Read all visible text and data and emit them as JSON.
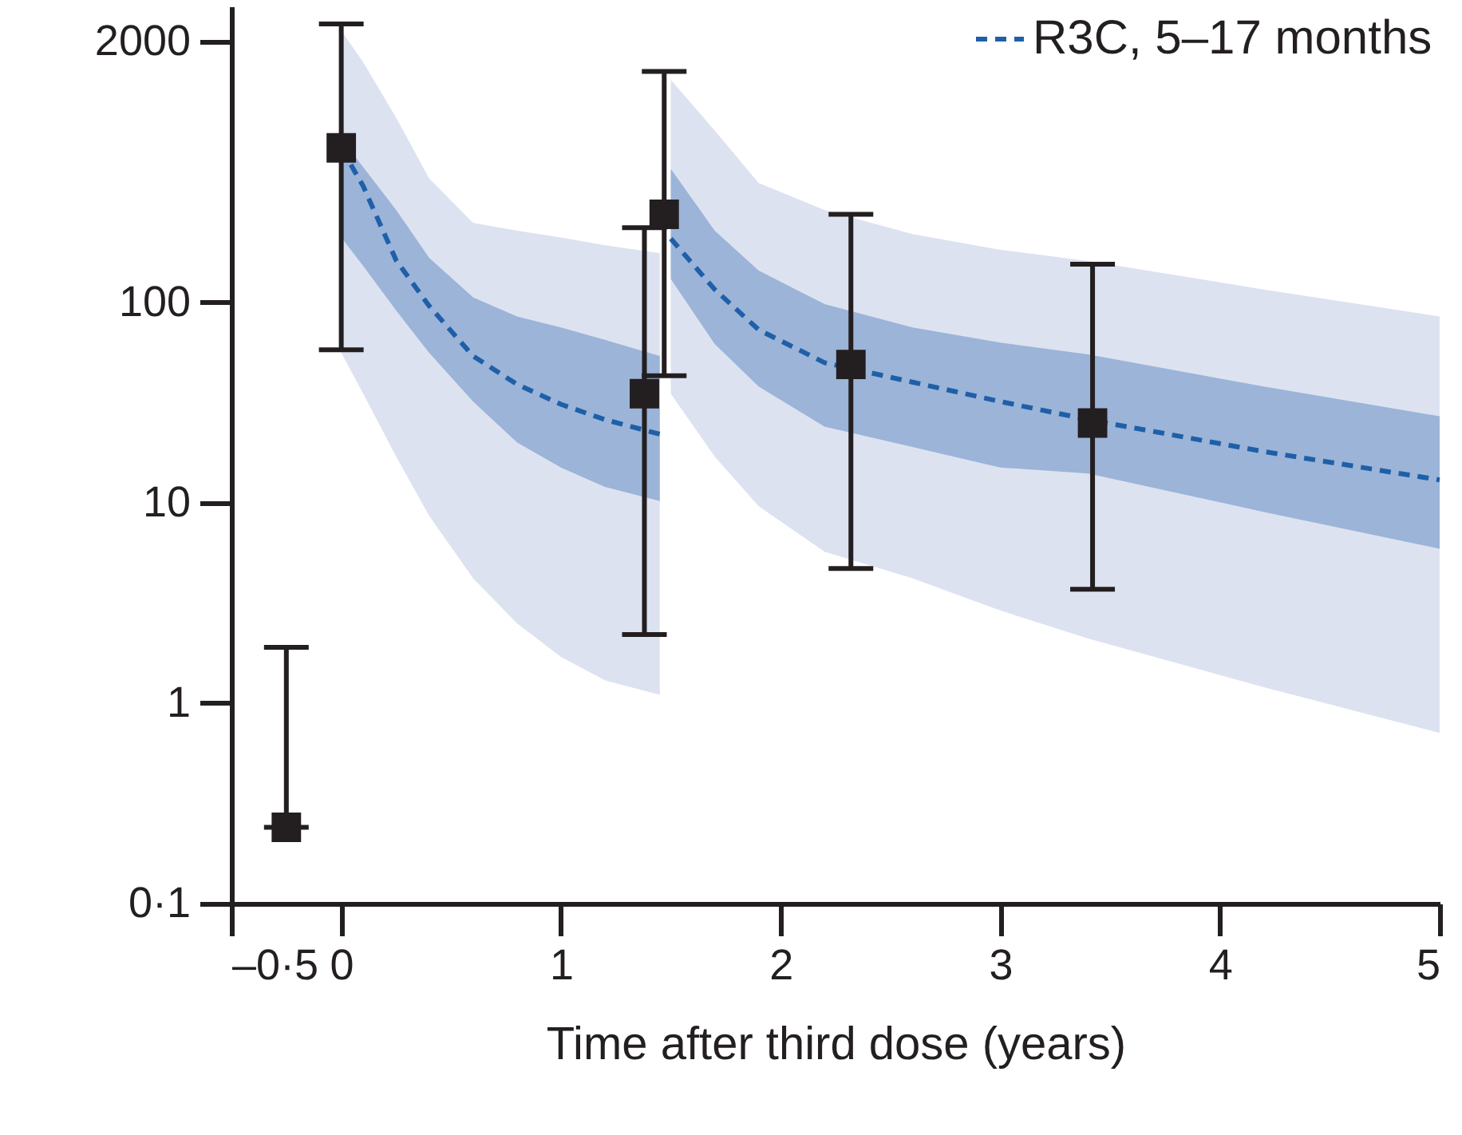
{
  "chart_data": {
    "type": "line",
    "xlabel": "Time after third dose (years)",
    "xlim": [
      -0.5,
      5
    ],
    "xticks": [
      {
        "value": -0.5,
        "label": "–0·5"
      },
      0,
      1,
      2,
      3,
      4,
      5
    ],
    "ylim": [
      0.1,
      3000
    ],
    "yticks": [
      {
        "value": 0.1,
        "label": "0·1"
      },
      1,
      10,
      100,
      2000
    ],
    "log": "y",
    "grid": false,
    "legend": "top right",
    "series": [
      {
        "color": "#dde2f1",
        "x": [
          0,
          0.1,
          0.25,
          0.4,
          0.6,
          0.8,
          1.0,
          1.2,
          1.45,
          1.48,
          1.5,
          1.7,
          1.9,
          2.2,
          2.6,
          3.0,
          3.4,
          4.2,
          5
        ],
        "values": [
          null,
          null,
          null,
          null,
          null,
          null,
          null,
          null,
          null,
          null,
          null,
          null,
          null,
          null,
          null,
          null,
          null,
          null,
          null
        ],
        "lower": [
          56,
          35,
          17,
          8.6,
          4.2,
          2.5,
          1.7,
          1.3,
          1.1,
          null,
          35,
          17,
          9.6,
          5.7,
          4.2,
          2.9,
          2.1,
          1.2,
          0.71
        ],
        "upper": [
          2275,
          1578,
          834,
          416,
          249,
          228,
          211,
          193,
          176,
          null,
          1291,
          720,
          394,
          289,
          219,
          183,
          161,
          116,
          85
        ]
      },
      {
        "name": "R3C, 5–17 months",
        "color": "#1f5fa8",
        "line_style": "dashed",
        "x": [
          0,
          0.1,
          0.25,
          0.4,
          0.6,
          0.8,
          1.0,
          1.2,
          1.45,
          1.48,
          1.5,
          1.7,
          1.9,
          2.2,
          2.6,
          3.0,
          3.4,
          4.2,
          5
        ],
        "values": [
          589,
          380,
          162,
          96,
          54,
          39,
          31,
          26,
          22,
          null,
          208,
          116,
          73,
          50,
          40,
          32,
          26,
          18,
          13
        ],
        "lower": [
          211,
          152,
          91,
          56,
          32,
          20,
          15,
          12,
          10.2,
          null,
          131,
          62,
          38,
          24,
          19,
          15,
          14,
          9,
          5.9
        ],
        "upper": [
          656,
          473,
          289,
          167,
          106,
          85,
          75,
          65,
          54,
          null,
          464,
          228,
          144,
          98,
          75,
          63,
          55,
          38,
          27
        ]
      },
      {
        "type": "scatter",
        "color": "#231f20",
        "marker": "square",
        "x": [
          -0.25,
          0,
          1.38,
          1.47,
          2.32,
          3.42
        ],
        "values": [
          0.24,
          590,
          35,
          275,
          49,
          25
        ],
        "errors": [
          [
            0.24,
            1.9
          ],
          [
            58,
            2450
          ],
          [
            2.2,
            236
          ],
          [
            43,
            1420
          ],
          [
            4.7,
            275
          ],
          [
            3.7,
            155
          ]
        ]
      }
    ]
  }
}
